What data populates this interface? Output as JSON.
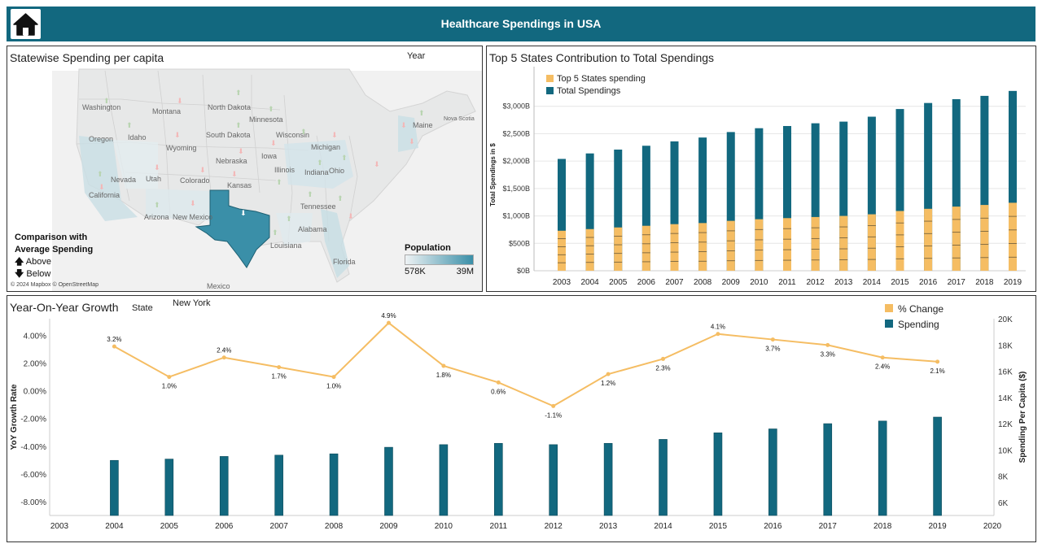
{
  "header": {
    "title": "Healthcare Spendings in USA",
    "home_icon": "home-icon"
  },
  "map_panel": {
    "title": "Statewise Spending per capita",
    "year_filter_label": "Year",
    "legend": {
      "title_line1": "Comparison with",
      "title_line2": "Average Spending",
      "above": "Above",
      "below": "Below"
    },
    "population_legend": {
      "title": "Population",
      "min": "578K",
      "max": "39M",
      "color_low": "#eef2f4",
      "color_high": "#3a8fa8"
    },
    "attribution": "© 2024 Mapbox © OpenStreetMap",
    "selected_state": "Texas",
    "labels": {
      "washington": "Washington",
      "oregon": "Oregon",
      "idaho": "Idaho",
      "montana": "Montana",
      "wyoming": "Wyoming",
      "nevada": "Nevada",
      "california": "California",
      "utah": "Utah",
      "colorado": "Colorado",
      "arizona": "Arizona",
      "newmexico": "New Mexico",
      "northdakota": "North Dakota",
      "southdakota": "South Dakota",
      "nebraska": "Nebraska",
      "kansas": "Kansas",
      "minnesota": "Minnesota",
      "iowa": "Iowa",
      "wisconsin": "Wisconsin",
      "michigan": "Michigan",
      "illinois": "Illinois",
      "indiana": "Indiana",
      "ohio": "Ohio",
      "tennessee": "Tennessee",
      "alabama": "Alabama",
      "louisiana": "Louisiana",
      "florida": "Florida",
      "maine": "Maine",
      "novascotia": "Nova Scotia",
      "mexico": "Mexico"
    }
  },
  "bar_panel": {
    "title": "Top 5 States Contribution to Total Spendings",
    "ylabel": "Total Spendings in $"
  },
  "combo_panel": {
    "title": "Year-On-Year Growth",
    "state_filter_label": "State",
    "state_filter_value": "New York"
  },
  "colors": {
    "teal": "#12687f",
    "orange": "#f5bd63",
    "header": "#12687f"
  },
  "chart_data": [
    {
      "type": "bar",
      "stacked": "overlay",
      "categories": [
        "2003",
        "2004",
        "2005",
        "2006",
        "2007",
        "2008",
        "2009",
        "2010",
        "2011",
        "2012",
        "2013",
        "2014",
        "2015",
        "2016",
        "2017",
        "2018",
        "2019"
      ],
      "series": [
        {
          "name": "Top 5 States spending",
          "color": "#f5bd63",
          "values": [
            730,
            760,
            790,
            820,
            850,
            870,
            910,
            940,
            960,
            980,
            1000,
            1030,
            1090,
            1130,
            1170,
            1200,
            1240
          ]
        },
        {
          "name": "Total Spendings",
          "color": "#12687f",
          "values": [
            2040,
            2140,
            2210,
            2280,
            2360,
            2430,
            2530,
            2600,
            2640,
            2690,
            2720,
            2810,
            2950,
            3060,
            3130,
            3190,
            3280
          ]
        }
      ],
      "ylabel": "Total Spendings in $",
      "yticks": [
        "$0B",
        "$500B",
        "$1,000B",
        "$1,500B",
        "$2,000B",
        "$2,500B",
        "$3,000B"
      ],
      "ylim": [
        0,
        3500
      ],
      "legend": "top-left"
    },
    {
      "type": "line",
      "x": [
        "2004",
        "2005",
        "2006",
        "2007",
        "2008",
        "2009",
        "2010",
        "2011",
        "2012",
        "2013",
        "2014",
        "2015",
        "2016",
        "2017",
        "2018",
        "2019"
      ],
      "xticks": [
        "2003",
        "2004",
        "2005",
        "2006",
        "2007",
        "2008",
        "2009",
        "2010",
        "2011",
        "2012",
        "2013",
        "2014",
        "2015",
        "2016",
        "2017",
        "2018",
        "2019",
        "2020"
      ],
      "series": [
        {
          "name": "% Change",
          "color": "#f5bd63",
          "axis": "left",
          "values": [
            3.2,
            1.0,
            2.4,
            1.7,
            1.0,
            4.9,
            1.8,
            0.6,
            -1.1,
            1.2,
            2.3,
            4.1,
            3.7,
            3.3,
            2.4,
            2.1
          ],
          "labels": [
            "3.2%",
            "1.0%",
            "2.4%",
            "1.7%",
            "1.0%",
            "4.9%",
            "1.8%",
            "0.6%",
            "-1.1%",
            "1.2%",
            "2.3%",
            "4.1%",
            "3.7%",
            "3.3%",
            "2.4%",
            "2.1%"
          ]
        },
        {
          "name": "Spending",
          "color": "#12687f",
          "axis": "right",
          "mark": "bar",
          "values": [
            9200,
            9300,
            9500,
            9600,
            9700,
            10200,
            10400,
            10500,
            10400,
            10500,
            10800,
            11300,
            11600,
            12000,
            12200,
            12500
          ]
        }
      ],
      "ylabel_left": "YoY Growth Rate",
      "ylabel_right": "Spending Per Capita ($)",
      "yticks_left": [
        "4.00%",
        "2.00%",
        "0.00%",
        "-2.00%",
        "-4.00%",
        "-6.00%",
        "-8.00%"
      ],
      "yticks_right": [
        "20K",
        "18K",
        "16K",
        "14K",
        "12K",
        "10K",
        "8K",
        "6K"
      ],
      "ylim_left": [
        -9.0,
        5.2
      ],
      "ylim_right": [
        5000,
        20000
      ],
      "legend": "top-right"
    }
  ]
}
